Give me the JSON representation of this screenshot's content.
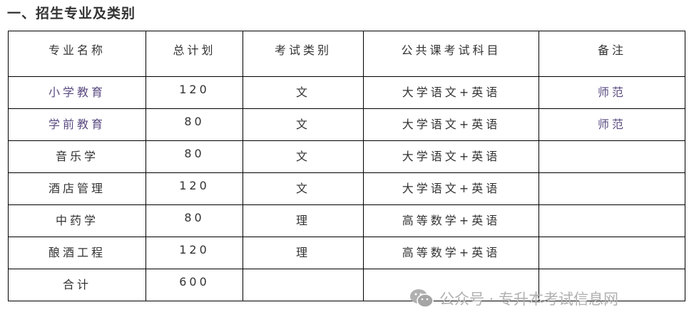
{
  "title": "一、招生专业及类别",
  "table": {
    "headers": [
      "专业名称",
      "总计划",
      "考试类别",
      "公共课考试科目",
      "备注"
    ],
    "rows": [
      [
        "小学教育",
        "120",
        "文",
        "大学语文+英语",
        "师范"
      ],
      [
        "学前教育",
        "80",
        "文",
        "大学语文+英语",
        "师范"
      ],
      [
        "音乐学",
        "80",
        "文",
        "大学语文+英语",
        ""
      ],
      [
        "酒店管理",
        "120",
        "文",
        "大学语文+英语",
        ""
      ],
      [
        "中药学",
        "80",
        "理",
        "高等数学+英语",
        ""
      ],
      [
        "酿酒工程",
        "120",
        "理",
        "高等数学+英语",
        ""
      ],
      [
        "合计",
        "600",
        "",
        "",
        ""
      ]
    ]
  },
  "watermark": {
    "icon": "wechat-icon",
    "text": "公众号 · 专升本考试信息网"
  }
}
